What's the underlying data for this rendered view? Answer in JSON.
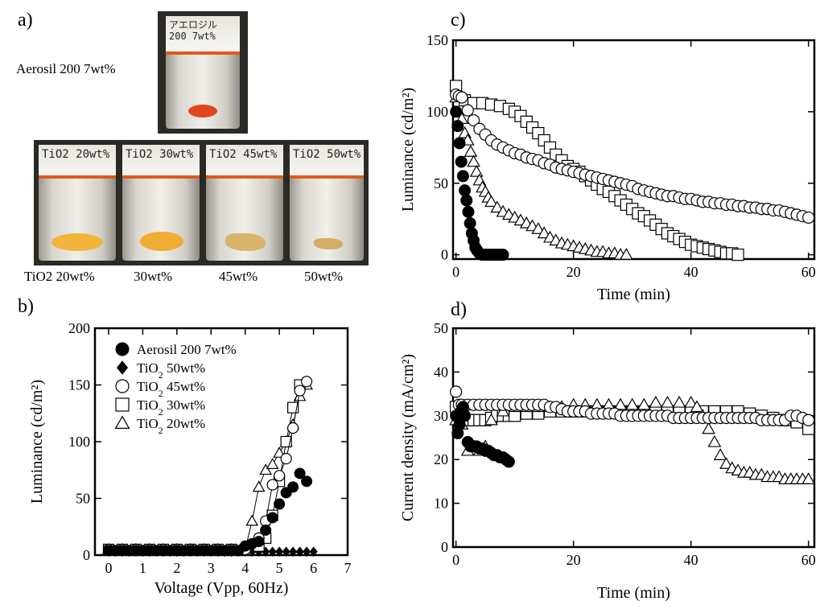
{
  "panels": {
    "a": "a)",
    "b": "b)",
    "c": "c)",
    "d": "d)"
  },
  "photos": {
    "aerosil_label": "Aerosil 200 7wt%",
    "aerosil_vial_text": "アエロジル 200 7wt%",
    "vial_texts": [
      "TiO2 20wt%",
      "TiO2 30wt%",
      "TiO2 45wt%",
      "TiO2 50wt%"
    ],
    "captions": [
      "TiO2 20wt%",
      "30wt%",
      "45wt%",
      "50wt%"
    ],
    "colors": {
      "orange": "#e0461c",
      "yellow": "#f2b43a",
      "tan": "#d9b56a"
    }
  },
  "chart_data": [
    {
      "id": "b",
      "type": "scatter",
      "xlabel": "Voltage (Vpp, 60Hz)",
      "ylabel": "Luminance (cd/m²)",
      "xlim": [
        -0.4,
        7
      ],
      "ylim": [
        0,
        200
      ],
      "xticks": [
        0,
        1,
        2,
        3,
        4,
        5,
        6,
        7
      ],
      "yticks": [
        0,
        50,
        100,
        150,
        200
      ],
      "legend_position": "top-left",
      "series": [
        {
          "name": "Aerosil 200 7wt%",
          "marker": "circle-filled",
          "x": [
            0,
            0.2,
            0.4,
            0.6,
            0.8,
            1.0,
            1.2,
            1.4,
            1.6,
            1.8,
            2.0,
            2.2,
            2.4,
            2.6,
            2.8,
            3.0,
            3.2,
            3.4,
            3.6,
            3.8,
            4.0,
            4.2,
            4.4,
            4.6,
            4.8,
            5.0,
            5.2,
            5.4,
            5.6,
            5.8
          ],
          "y": [
            4,
            4,
            4,
            4,
            4,
            4,
            4,
            4,
            4,
            4,
            4,
            4,
            4,
            4,
            4,
            4,
            4,
            4,
            4,
            4,
            8,
            10,
            12,
            22,
            33,
            45,
            55,
            60,
            72,
            65
          ]
        },
        {
          "name": "TiO2 50wt%",
          "marker": "diamond-filled",
          "x": [
            0,
            0.2,
            0.4,
            0.6,
            0.8,
            1.0,
            1.2,
            1.4,
            1.6,
            1.8,
            2.0,
            2.2,
            2.4,
            2.6,
            2.8,
            3.0,
            3.2,
            3.4,
            3.6,
            3.8,
            4.0,
            4.2,
            4.4,
            4.6,
            4.8,
            5.0,
            5.2,
            5.4,
            5.6,
            5.8,
            6.0
          ],
          "y": [
            3,
            3,
            3,
            3,
            3,
            3,
            3,
            3,
            3,
            3,
            3,
            3,
            3,
            3,
            3,
            3,
            3,
            3,
            3,
            3,
            3,
            3,
            3,
            3,
            3,
            3,
            3,
            3,
            3,
            3,
            3
          ]
        },
        {
          "name": "TiO2 45wt%",
          "marker": "circle-open",
          "x": [
            0,
            0.4,
            0.8,
            1.2,
            1.6,
            2.0,
            2.4,
            2.8,
            3.2,
            3.6,
            4.0,
            4.4,
            4.6,
            4.8,
            5.0,
            5.2,
            5.4,
            5.6,
            5.8
          ],
          "y": [
            5,
            5,
            5,
            5,
            5,
            5,
            5,
            5,
            5,
            5,
            5,
            15,
            30,
            62,
            70,
            85,
            112,
            145,
            153
          ]
        },
        {
          "name": "TiO2 30wt%",
          "marker": "square-open",
          "x": [
            0,
            0.4,
            0.8,
            1.2,
            1.6,
            2.0,
            2.4,
            2.8,
            3.2,
            3.6,
            4.0,
            4.4,
            4.6,
            4.8,
            5.0,
            5.2,
            5.4,
            5.6
          ],
          "y": [
            5,
            5,
            5,
            5,
            5,
            5,
            5,
            5,
            5,
            5,
            5,
            8,
            15,
            35,
            65,
            100,
            130,
            150
          ]
        },
        {
          "name": "TiO2 20wt%",
          "marker": "triangle-open",
          "x": [
            0,
            0.4,
            0.8,
            1.2,
            1.6,
            2.0,
            2.4,
            2.8,
            3.2,
            3.6,
            4.0,
            4.2,
            4.4,
            4.6,
            4.8,
            5.0,
            5.2,
            5.4,
            5.6,
            5.8
          ],
          "y": [
            5,
            5,
            5,
            5,
            5,
            5,
            5,
            5,
            5,
            5,
            5,
            30,
            60,
            75,
            80,
            90,
            100,
            115,
            140,
            150
          ]
        }
      ]
    },
    {
      "id": "c",
      "type": "scatter",
      "xlabel": "Time (min)",
      "ylabel": "Luminance (cd/m²)",
      "xlim": [
        -0.5,
        61
      ],
      "ylim": [
        -3,
        150
      ],
      "xticks": [
        0,
        20,
        40,
        60
      ],
      "yticks": [
        0,
        50,
        100,
        150
      ],
      "series": [
        {
          "name": "Aerosil 200 7wt%",
          "marker": "circle-filled",
          "x": [
            0,
            0.3,
            0.6,
            0.9,
            1.2,
            1.5,
            1.8,
            2.1,
            2.4,
            2.7,
            3.0,
            3.3,
            3.6,
            4.0,
            4.5,
            5.0,
            5.5,
            6.0,
            6.5,
            7.0,
            7.5,
            8.0
          ],
          "y": [
            100,
            90,
            78,
            65,
            55,
            45,
            38,
            30,
            22,
            15,
            10,
            5,
            3,
            1,
            0,
            0,
            0,
            0,
            0,
            0,
            0,
            0
          ]
        },
        {
          "name": "TiO2 30wt%",
          "marker": "square-open",
          "x": [
            0,
            1.5,
            3,
            4.5,
            6,
            7.5,
            9,
            10,
            11,
            12,
            13,
            14,
            15,
            16,
            17,
            18,
            19,
            20,
            21,
            22,
            23,
            24,
            25,
            26,
            27,
            28,
            29,
            30,
            31,
            32,
            33,
            34,
            35,
            36,
            37,
            38,
            39,
            40,
            41,
            42,
            43,
            44,
            45,
            46,
            47,
            48
          ],
          "y": [
            118,
            108,
            106,
            106,
            105,
            104,
            102,
            100,
            97,
            93,
            89,
            85,
            80,
            75,
            70,
            66,
            62,
            60,
            58,
            55,
            52,
            49,
            46,
            44,
            41,
            38,
            35,
            32,
            29,
            27,
            24,
            21,
            18,
            15,
            13,
            11,
            9,
            7,
            6,
            5,
            4,
            3,
            2,
            1,
            1,
            0
          ]
        },
        {
          "name": "TiO2 45wt%",
          "marker": "circle-open",
          "x": [
            0,
            0.5,
            1,
            2,
            3,
            4,
            5,
            6,
            7,
            8,
            9,
            10,
            11,
            12,
            13,
            14,
            15,
            16,
            17,
            18,
            19,
            20,
            21,
            22,
            23,
            24,
            25,
            26,
            27,
            28,
            29,
            30,
            31,
            32,
            33,
            34,
            35,
            36,
            37,
            38,
            39,
            40,
            41,
            42,
            43,
            44,
            45,
            46,
            47,
            48,
            49,
            50,
            51,
            52,
            53,
            54,
            55,
            56,
            57,
            58,
            59,
            60
          ],
          "y": [
            112,
            111,
            110,
            101,
            94,
            88,
            84,
            80,
            77,
            75,
            73,
            71,
            70,
            68,
            67,
            66,
            64,
            63,
            61,
            60,
            59,
            58,
            57,
            56,
            55,
            54,
            53,
            52,
            51,
            50,
            49,
            48,
            46,
            45,
            44,
            43,
            42,
            41,
            41,
            40,
            39,
            39,
            38,
            37,
            37,
            36,
            36,
            35,
            35,
            34,
            34,
            33,
            33,
            32,
            32,
            31,
            31,
            30,
            29,
            28,
            27,
            26
          ]
        },
        {
          "name": "TiO2 20wt%",
          "marker": "triangle-open",
          "x": [
            0,
            1,
            1.5,
            2,
            2.5,
            3,
            3.5,
            4,
            4.5,
            5,
            5.5,
            6,
            7,
            8,
            9,
            10,
            11,
            12,
            13,
            14,
            15,
            16,
            17,
            18,
            19,
            20,
            21,
            22,
            23,
            24,
            25,
            26,
            27,
            28,
            29
          ],
          "y": [
            110,
            95,
            85,
            80,
            72,
            65,
            58,
            52,
            47,
            44,
            40,
            37,
            33,
            30,
            28,
            26,
            24,
            22,
            20,
            18,
            15,
            12,
            10,
            8,
            7,
            6,
            5,
            4,
            3,
            2,
            2,
            1,
            1,
            0,
            0
          ]
        }
      ]
    },
    {
      "id": "d",
      "type": "scatter",
      "xlabel": "Time (min)",
      "ylabel": "Current density (mA/cm²)",
      "xlim": [
        -0.5,
        61
      ],
      "ylim": [
        0,
        50
      ],
      "xticks": [
        0,
        20,
        40,
        60
      ],
      "yticks": [
        0,
        10,
        20,
        30,
        40,
        50
      ],
      "series": [
        {
          "name": "Aerosil 200 7wt%",
          "marker": "circle-filled",
          "x": [
            0,
            0.3,
            0.6,
            0.9,
            1.2,
            1.5,
            2,
            2.5,
            3,
            3.5,
            4,
            4.5,
            5,
            5.5,
            6,
            6.5,
            7,
            7.5,
            8,
            8.5,
            9
          ],
          "y": [
            30,
            26,
            28,
            31,
            32,
            30,
            24,
            23,
            23,
            23,
            22.5,
            22.5,
            22,
            22,
            21.5,
            21,
            21,
            20.5,
            20.5,
            20,
            19.5
          ]
        },
        {
          "name": "TiO2 30wt%",
          "marker": "square-open",
          "x": [
            0,
            1,
            2,
            3,
            4,
            5,
            6,
            7,
            8,
            9,
            10,
            12,
            14,
            16,
            18,
            20,
            22,
            24,
            26,
            28,
            30,
            32,
            34,
            36,
            38,
            40,
            42,
            44,
            46,
            48,
            50,
            52,
            54,
            56,
            58,
            60
          ],
          "y": [
            32,
            29.5,
            29,
            29,
            29,
            29,
            29.5,
            30,
            30,
            30,
            30,
            30.5,
            30.5,
            31,
            31,
            31,
            31,
            31,
            31,
            31,
            31,
            31,
            31,
            31,
            31,
            31,
            31,
            31,
            31,
            31,
            30.5,
            30,
            29.5,
            29,
            28.5,
            27
          ]
        },
        {
          "name": "TiO2 45wt%",
          "marker": "circle-open",
          "x": [
            0,
            0.5,
            1,
            2,
            3,
            4,
            5,
            6,
            7,
            8,
            9,
            10,
            11,
            12,
            13,
            14,
            15,
            16,
            17,
            18,
            19,
            20,
            21,
            22,
            23,
            24,
            25,
            26,
            27,
            28,
            29,
            30,
            31,
            32,
            33,
            34,
            35,
            36,
            37,
            38,
            39,
            40,
            41,
            42,
            43,
            44,
            45,
            46,
            47,
            48,
            49,
            50,
            51,
            52,
            53,
            54,
            55,
            56,
            57,
            58,
            59,
            60
          ],
          "y": [
            35.5,
            32.5,
            32.5,
            32.5,
            32.5,
            32.5,
            32.5,
            32.5,
            32.5,
            32.5,
            32.5,
            32.5,
            32.5,
            32.5,
            32.5,
            32.5,
            32.5,
            32,
            32,
            31.5,
            31,
            31,
            31,
            31,
            30.5,
            30.5,
            30.5,
            30.5,
            30.5,
            30,
            30,
            30,
            30,
            30,
            30,
            30,
            30,
            30,
            29.5,
            29.5,
            29.5,
            29.5,
            29.5,
            29.5,
            29.5,
            29.5,
            29.5,
            29.5,
            29.5,
            29.5,
            29.5,
            29.5,
            29.5,
            29,
            29,
            29,
            29,
            29,
            30,
            30,
            29.5,
            29
          ]
        },
        {
          "name": "TiO2 20wt%",
          "marker": "triangle-open",
          "x": [
            0,
            1,
            2,
            3,
            4,
            5,
            6,
            8,
            10,
            12,
            14,
            16,
            18,
            20,
            22,
            24,
            26,
            28,
            30,
            32,
            34,
            36,
            38,
            40,
            41,
            42,
            43,
            44,
            45,
            46,
            47,
            48,
            49,
            50,
            51,
            52,
            53,
            54,
            55,
            56,
            57,
            58,
            59,
            60
          ],
          "y": [
            29,
            28,
            22,
            23,
            22,
            23,
            29,
            31,
            32,
            32,
            32,
            32,
            32,
            32.5,
            32.5,
            32.5,
            32.5,
            32.5,
            32.5,
            32.5,
            33,
            33,
            33,
            33,
            32,
            30,
            27,
            24,
            21,
            19,
            18,
            17.5,
            17,
            17,
            16.5,
            16.5,
            16,
            16,
            16,
            15.5,
            15.5,
            15.5,
            15.5,
            15.5
          ]
        }
      ]
    }
  ]
}
